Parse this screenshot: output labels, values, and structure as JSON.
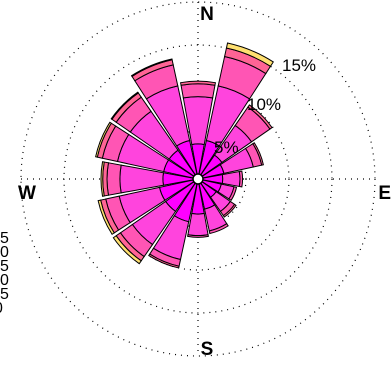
{
  "chart_data": {
    "type": "windrose",
    "title": "",
    "directions": [
      {
        "label": "N"
      },
      {
        "label": "E"
      },
      {
        "label": "S"
      },
      {
        "label": "W"
      }
    ],
    "rings": [
      {
        "value": 5,
        "label": "5%"
      },
      {
        "value": 10,
        "label": "10%"
      },
      {
        "value": 15,
        "label": "15%"
      },
      {
        "value": 20,
        "label": ""
      }
    ],
    "legend_fragment": [
      "5",
      "0",
      "5",
      "0",
      "5",
      "0"
    ],
    "sector_width_deg": 22.5,
    "band_colors": [
      "#ff00ff",
      "#ff44dd",
      "#ff55b4",
      "#ff6495",
      "#ffe070"
    ],
    "sectors": [
      {
        "dir": 0,
        "bands": [
          3.5,
          5.5,
          1.5,
          0.3,
          0.0
        ]
      },
      {
        "dir": 22.5,
        "bands": [
          4.0,
          6.5,
          3.5,
          1.0,
          0.6
        ]
      },
      {
        "dir": 45,
        "bands": [
          2.8,
          4.2,
          2.6,
          0.3,
          0.0
        ]
      },
      {
        "dir": 67.5,
        "bands": [
          2.5,
          3.5,
          1.0,
          0.2,
          0.0
        ]
      },
      {
        "dir": 90,
        "bands": [
          2.3,
          2.0,
          0.3,
          0.0,
          0.0
        ]
      },
      {
        "dir": 112.5,
        "bands": [
          2.2,
          1.5,
          0.3,
          0.0,
          0.0
        ]
      },
      {
        "dir": 135,
        "bands": [
          2.0,
          2.0,
          0.6,
          0.2,
          0.0
        ]
      },
      {
        "dir": 157.5,
        "bands": [
          3.0,
          2.6,
          0.3,
          0.0,
          0.0
        ]
      },
      {
        "dir": 180,
        "bands": [
          3.5,
          2.5,
          0.2,
          0.0,
          0.0
        ]
      },
      {
        "dir": 202.5,
        "bands": [
          4.5,
          4.5,
          0.8,
          0.2,
          0.0
        ]
      },
      {
        "dir": 225,
        "bands": [
          4.0,
          4.7,
          1.7,
          0.6,
          0.4
        ]
      },
      {
        "dir": 247.5,
        "bands": [
          4.0,
          4.8,
          1.6,
          0.6,
          0.3
        ]
      },
      {
        "dir": 270,
        "bands": [
          3.5,
          5.0,
          1.5,
          0.5,
          0.2
        ]
      },
      {
        "dir": 292.5,
        "bands": [
          3.5,
          5.5,
          1.8,
          0.6,
          0.2
        ]
      },
      {
        "dir": 315,
        "bands": [
          3.5,
          5.5,
          2.0,
          0.6,
          0.1
        ]
      },
      {
        "dir": 337.5,
        "bands": [
          4.0,
          6.5,
          2.5,
          0.6,
          0.1
        ]
      }
    ],
    "grid": true
  }
}
